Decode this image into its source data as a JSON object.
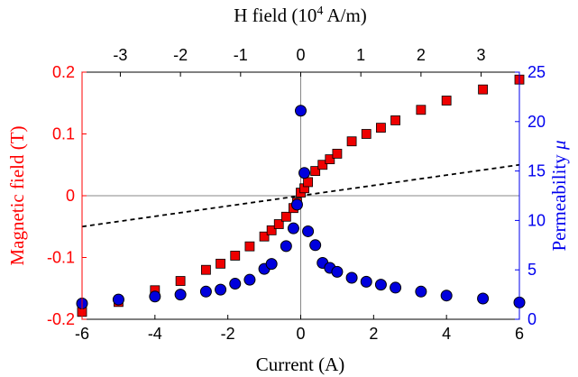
{
  "colors": {
    "left_axis": "#ff0000",
    "right_axis": "#0000ee",
    "axis_black": "#000000",
    "square_fill": "#ee0000",
    "circle_fill": "#0000dd",
    "reference_line": "#000000"
  },
  "chart_data": {
    "type": "scatter",
    "xlabel": "Current (A)",
    "xlim": [
      -6,
      6
    ],
    "x_ticks": [
      "-6",
      "-4",
      "-2",
      "0",
      "2",
      "4",
      "6"
    ],
    "top_axis": {
      "label_prefix": "H field (10",
      "label_exponent": "4",
      "label_suffix": " A/m)",
      "ticks": [
        {
          "label": "-3",
          "current": -4.95
        },
        {
          "label": "-2",
          "current": -3.3
        },
        {
          "label": "-1",
          "current": -1.65
        },
        {
          "label": "0",
          "current": 0
        },
        {
          "label": "1",
          "current": 1.65
        },
        {
          "label": "2",
          "current": 3.3
        },
        {
          "label": "3",
          "current": 4.95
        }
      ]
    },
    "left_axis": {
      "label": "Magnetic field (T)",
      "lim": [
        -0.2,
        0.2
      ],
      "ticks": [
        "-0.2",
        "-0.1",
        "0",
        "0.1",
        "0.2"
      ]
    },
    "right_axis": {
      "label_prefix": "Permeability ",
      "label_symbol": "μ",
      "lim": [
        0,
        25
      ],
      "ticks": [
        "0",
        "5",
        "10",
        "15",
        "20",
        "25"
      ]
    },
    "zero_lines": {
      "horizontal_at_field": 0,
      "vertical_at_current": 0
    },
    "grid": false,
    "series": [
      {
        "marker": "square",
        "axis": "left",
        "x": [
          -6,
          -5,
          -4,
          -3.3,
          -2.6,
          -2.2,
          -1.8,
          -1.4,
          -1.0,
          -0.8,
          -0.6,
          -0.4,
          -0.2,
          -0.1,
          0,
          0.1,
          0.2,
          0.4,
          0.6,
          0.8,
          1.0,
          1.4,
          1.8,
          2.2,
          2.6,
          3.3,
          4.0,
          5.0,
          6.0
        ],
        "y": [
          -0.188,
          -0.172,
          -0.153,
          -0.138,
          -0.12,
          -0.11,
          -0.097,
          -0.082,
          -0.066,
          -0.056,
          -0.046,
          -0.034,
          -0.02,
          -0.011,
          0.005,
          0.012,
          0.022,
          0.04,
          0.05,
          0.059,
          0.068,
          0.088,
          0.1,
          0.11,
          0.122,
          0.139,
          0.154,
          0.172,
          0.188
        ]
      },
      {
        "marker": "circle",
        "axis": "right",
        "x": [
          -6,
          -5,
          -4,
          -3.3,
          -2.6,
          -2.2,
          -1.8,
          -1.4,
          -1.0,
          -0.8,
          -0.4,
          -0.2,
          -0.1,
          0,
          0.1,
          0.2,
          0.4,
          0.6,
          0.8,
          1.0,
          1.4,
          1.8,
          2.2,
          2.6,
          3.3,
          4.0,
          5.0,
          6.0
        ],
        "y": [
          1.6,
          2.0,
          2.3,
          2.5,
          2.8,
          3.0,
          3.6,
          4.0,
          5.1,
          5.6,
          7.4,
          9.2,
          11.6,
          21.1,
          14.8,
          8.9,
          7.5,
          5.7,
          5.2,
          4.8,
          4.2,
          3.8,
          3.5,
          3.2,
          2.8,
          2.4,
          2.1,
          1.7
        ]
      },
      {
        "marker": "dashed-line",
        "axis": "left",
        "x": [
          -6,
          6
        ],
        "y": [
          -0.05,
          0.05
        ]
      }
    ]
  }
}
